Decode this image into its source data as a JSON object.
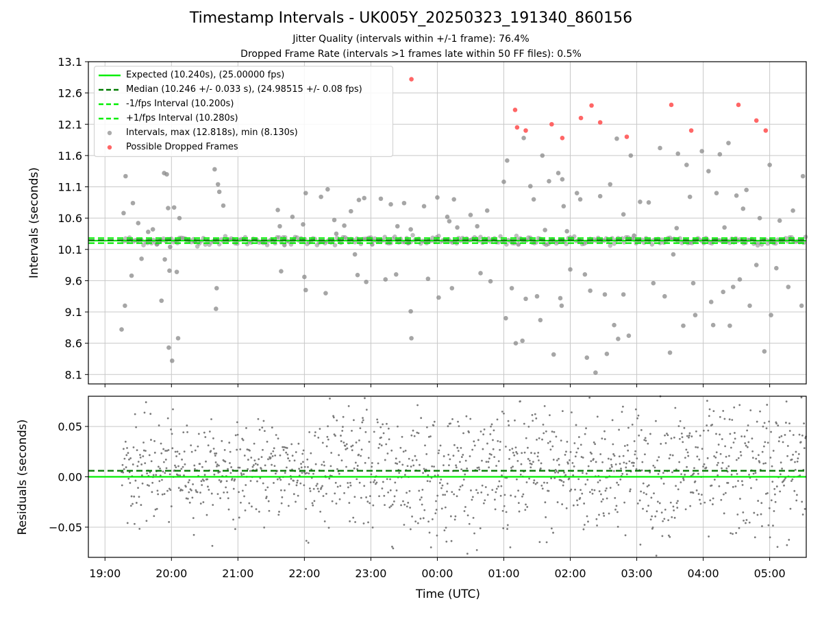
{
  "title": "Timestamp Intervals - UK005Y_20250323_191340_860156",
  "subtitle_1": "Jitter Quality (intervals within +/-1 frame): 76.4%",
  "subtitle_2": "Dropped Frame Rate (intervals >1 frames late within 50 FF files): 0.5%",
  "colors": {
    "expected": "#00ee00",
    "median": "#007a00",
    "interval_points": "#888888",
    "dropped_points": "#ff5555",
    "residual_points": "#7a7a7a",
    "grid": "#c8c8c8"
  },
  "chart_data": [
    {
      "type": "scatter",
      "ylabel": "Intervals (seconds)",
      "x_is_time": true,
      "xlim_hours": [
        18.75,
        29.55
      ],
      "ylim": [
        7.95,
        13.1
      ],
      "yticks": [
        "8.1",
        "8.6",
        "9.1",
        "9.6",
        "10.1",
        "10.6",
        "11.1",
        "11.6",
        "12.1",
        "12.6",
        "13.1"
      ],
      "grid": true,
      "legend_position": "top-left",
      "lines": [
        {
          "name": "Expected (10.240s), (25.00000 fps)",
          "y": 10.24,
          "style": "solid",
          "color_key": "expected"
        },
        {
          "name": "Median (10.246 +/- 0.033 s), (24.98515 +/- 0.08 fps)",
          "y": 10.246,
          "style": "dashed",
          "color_key": "median"
        },
        {
          "name": "-1/fps Interval (10.200s)",
          "y": 10.2,
          "style": "dashed",
          "color_key": "expected"
        },
        {
          "name": "+1/fps Interval (10.280s)",
          "y": 10.28,
          "style": "dashed",
          "color_key": "expected"
        }
      ],
      "series": [
        {
          "name": "Intervals, max (12.818s), min (8.130s)",
          "color_key": "interval_points",
          "points": [
            [
              19.25,
              8.82
            ],
            [
              19.3,
              9.2
            ],
            [
              19.31,
              11.27
            ],
            [
              19.28,
              10.68
            ],
            [
              19.4,
              9.68
            ],
            [
              19.42,
              10.84
            ],
            [
              19.5,
              10.52
            ],
            [
              19.55,
              9.95
            ],
            [
              19.65,
              10.38
            ],
            [
              19.78,
              10.18
            ],
            [
              19.89,
              11.32
            ],
            [
              19.93,
              11.3
            ],
            [
              19.95,
              10.76
            ],
            [
              19.97,
              9.76
            ],
            [
              19.96,
              8.53
            ],
            [
              19.98,
              10.14
            ],
            [
              20.01,
              8.32
            ],
            [
              20.04,
              10.77
            ],
            [
              20.1,
              8.68
            ],
            [
              20.12,
              10.6
            ],
            [
              20.08,
              9.74
            ],
            [
              20.65,
              11.38
            ],
            [
              20.67,
              9.15
            ],
            [
              20.68,
              9.48
            ],
            [
              20.72,
              11.02
            ],
            [
              20.78,
              10.8
            ],
            [
              20.7,
              11.14
            ],
            [
              21.6,
              10.73
            ],
            [
              21.63,
              10.47
            ],
            [
              21.7,
              10.17
            ],
            [
              21.82,
              10.62
            ],
            [
              21.65,
              9.75
            ],
            [
              21.98,
              10.5
            ],
            [
              22.02,
              11.0
            ],
            [
              22.0,
              9.66
            ],
            [
              22.02,
              9.45
            ],
            [
              22.25,
              10.94
            ],
            [
              22.35,
              11.06
            ],
            [
              22.32,
              9.4
            ],
            [
              22.45,
              10.57
            ],
            [
              22.48,
              10.35
            ],
            [
              22.7,
              10.71
            ],
            [
              22.82,
              10.89
            ],
            [
              22.76,
              10.02
            ],
            [
              22.8,
              9.69
            ],
            [
              22.9,
              10.92
            ],
            [
              22.93,
              9.58
            ],
            [
              23.02,
              10.18
            ],
            [
              23.15,
              10.91
            ],
            [
              23.22,
              9.62
            ],
            [
              23.3,
              10.82
            ],
            [
              23.38,
              9.7
            ],
            [
              23.5,
              10.84
            ],
            [
              23.56,
              10.2
            ],
            [
              23.6,
              9.11
            ],
            [
              23.61,
              8.68
            ],
            [
              23.6,
              10.42
            ],
            [
              23.8,
              10.79
            ],
            [
              23.86,
              9.63
            ],
            [
              24.0,
              10.93
            ],
            [
              24.02,
              9.33
            ],
            [
              24.15,
              10.62
            ],
            [
              24.22,
              9.48
            ],
            [
              24.18,
              10.55
            ],
            [
              24.25,
              10.9
            ],
            [
              24.5,
              10.65
            ],
            [
              24.65,
              9.72
            ],
            [
              24.75,
              10.72
            ],
            [
              24.8,
              9.59
            ],
            [
              25.0,
              11.18
            ],
            [
              25.03,
              9.0
            ],
            [
              25.05,
              11.52
            ],
            [
              25.12,
              9.48
            ],
            [
              25.18,
              8.6
            ],
            [
              25.22,
              10.18
            ],
            [
              25.28,
              8.64
            ],
            [
              25.3,
              11.88
            ],
            [
              25.33,
              9.31
            ],
            [
              25.4,
              11.11
            ],
            [
              25.5,
              9.35
            ],
            [
              25.55,
              8.97
            ],
            [
              25.58,
              11.6
            ],
            [
              25.62,
              10.41
            ],
            [
              25.68,
              11.19
            ],
            [
              25.75,
              8.42
            ],
            [
              25.82,
              11.32
            ],
            [
              25.85,
              9.32
            ],
            [
              25.87,
              9.2
            ],
            [
              25.88,
              11.22
            ],
            [
              25.9,
              10.79
            ],
            [
              26.0,
              9.78
            ],
            [
              26.1,
              11.0
            ],
            [
              26.15,
              10.9
            ],
            [
              26.22,
              9.7
            ],
            [
              26.25,
              8.37
            ],
            [
              26.3,
              9.44
            ],
            [
              26.38,
              8.13
            ],
            [
              26.45,
              10.95
            ],
            [
              26.52,
              9.38
            ],
            [
              26.55,
              8.43
            ],
            [
              26.6,
              11.14
            ],
            [
              26.66,
              8.89
            ],
            [
              26.7,
              11.87
            ],
            [
              26.8,
              9.38
            ],
            [
              26.88,
              8.72
            ],
            [
              26.91,
              11.6
            ],
            [
              26.96,
              10.32
            ],
            [
              27.05,
              10.86
            ],
            [
              27.18,
              10.85
            ],
            [
              27.25,
              9.56
            ],
            [
              27.35,
              11.72
            ],
            [
              27.42,
              9.35
            ],
            [
              27.5,
              8.45
            ],
            [
              27.55,
              10.02
            ],
            [
              27.62,
              11.63
            ],
            [
              27.7,
              8.88
            ],
            [
              27.8,
              10.94
            ],
            [
              27.85,
              9.56
            ],
            [
              27.88,
              9.05
            ],
            [
              27.98,
              11.67
            ],
            [
              28.08,
              11.35
            ],
            [
              28.12,
              9.26
            ],
            [
              28.15,
              8.89
            ],
            [
              28.25,
              11.62
            ],
            [
              28.3,
              9.42
            ],
            [
              28.38,
              11.8
            ],
            [
              28.4,
              8.88
            ],
            [
              28.45,
              9.5
            ],
            [
              28.5,
              10.96
            ],
            [
              28.55,
              9.62
            ],
            [
              28.65,
              11.05
            ],
            [
              28.7,
              9.2
            ],
            [
              28.8,
              9.85
            ],
            [
              28.85,
              10.6
            ],
            [
              28.92,
              8.47
            ],
            [
              29.0,
              11.45
            ],
            [
              29.02,
              9.05
            ],
            [
              29.15,
              10.56
            ],
            [
              29.28,
              9.5
            ],
            [
              29.35,
              10.72
            ],
            [
              29.5,
              11.27
            ],
            [
              29.48,
              9.2
            ],
            [
              25.95,
              10.39
            ],
            [
              26.8,
              10.66
            ],
            [
              27.6,
              10.44
            ],
            [
              28.32,
              10.45
            ],
            [
              28.2,
              11.0
            ],
            [
              24.6,
              10.47
            ],
            [
              23.4,
              10.47
            ],
            [
              22.6,
              10.48
            ],
            [
              20.35,
              10.22
            ],
            [
              19.72,
              10.42
            ],
            [
              19.85,
              9.28
            ],
            [
              19.9,
              9.94
            ],
            [
              26.72,
              8.67
            ],
            [
              25.45,
              10.9
            ],
            [
              24.3,
              10.45
            ],
            [
              27.75,
              11.45
            ],
            [
              28.6,
              10.75
            ],
            [
              29.1,
              9.8
            ]
          ]
        },
        {
          "name": "Possible Dropped Frames",
          "color_key": "dropped_points",
          "points": [
            [
              23.61,
              12.82
            ],
            [
              25.17,
              12.33
            ],
            [
              25.2,
              12.05
            ],
            [
              25.33,
              12.0
            ],
            [
              25.72,
              12.1
            ],
            [
              25.88,
              11.88
            ],
            [
              26.16,
              12.2
            ],
            [
              26.32,
              12.4
            ],
            [
              26.45,
              12.13
            ],
            [
              26.85,
              11.9
            ],
            [
              27.52,
              12.41
            ],
            [
              27.82,
              12.0
            ],
            [
              28.53,
              12.41
            ],
            [
              28.8,
              12.16
            ],
            [
              28.94,
              12.0
            ]
          ]
        }
      ],
      "band": {
        "y_min": 10.14,
        "y_max": 10.36,
        "x_min": 19.28,
        "x_max": 29.55,
        "color_key": "interval_points"
      }
    },
    {
      "type": "scatter",
      "xlabel": "Time (UTC)",
      "ylabel": "Residuals (seconds)",
      "xlim_hours": [
        18.75,
        29.55
      ],
      "ylim": [
        -0.08,
        0.08
      ],
      "yticks": [
        "−0.05",
        "0.00",
        "0.05"
      ],
      "ytick_values": [
        -0.05,
        0.0,
        0.05
      ],
      "xticks": [
        "19:00",
        "20:00",
        "21:00",
        "22:00",
        "23:00",
        "00:00",
        "01:00",
        "02:00",
        "03:00",
        "04:00",
        "05:00"
      ],
      "xtick_hours": [
        19,
        20,
        21,
        22,
        23,
        24,
        25,
        26,
        27,
        28,
        29
      ],
      "grid": true,
      "lines": [
        {
          "y": 0.0,
          "style": "solid",
          "color_key": "expected"
        },
        {
          "y": 0.006,
          "style": "dashed",
          "color_key": "median"
        }
      ],
      "residual_spread": [
        {
          "from": 19.25,
          "to": 20.0,
          "sd": 0.025
        },
        {
          "from": 20.0,
          "to": 22.0,
          "sd": 0.022
        },
        {
          "from": 22.0,
          "to": 29.55,
          "sd": 0.034
        }
      ]
    }
  ]
}
